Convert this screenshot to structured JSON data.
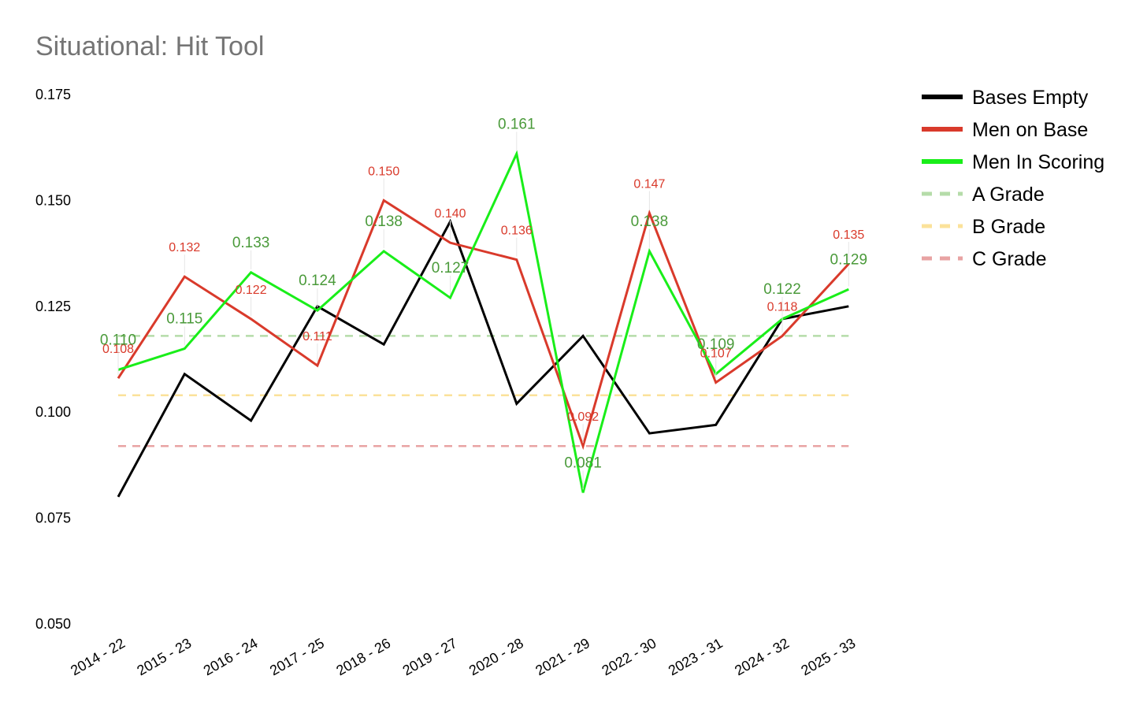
{
  "chart_data": {
    "type": "line",
    "title": "Situational: Hit Tool",
    "xlabel": "",
    "ylabel": "",
    "ylim": [
      0.05,
      0.175
    ],
    "yticks": [
      "0.175",
      "0.150",
      "0.125",
      "0.100",
      "0.075",
      "0.050"
    ],
    "ytick_values": [
      0.175,
      0.15,
      0.125,
      0.1,
      0.075,
      0.05
    ],
    "grid": false,
    "legend_position": "top-right",
    "categories": [
      "2014 - 22",
      "2015 - 23",
      "2016 - 24",
      "2017 - 25",
      "2018 - 26",
      "2019 - 27",
      "2020 - 28",
      "2021 - 29",
      "2022 - 30",
      "2023 - 31",
      "2024 - 32",
      "2025 - 33"
    ],
    "series": [
      {
        "name": "Bases Empty",
        "color": "#000000",
        "labeled": false,
        "values": [
          0.08,
          0.109,
          0.098,
          0.125,
          0.116,
          0.145,
          0.102,
          0.118,
          0.095,
          0.097,
          0.122,
          0.125
        ],
        "labels": []
      },
      {
        "name": "Men on Base",
        "color": "#d93a2b",
        "labeled": true,
        "values": [
          0.108,
          0.132,
          0.122,
          0.111,
          0.15,
          0.14,
          0.136,
          0.092,
          0.147,
          0.107,
          0.118,
          0.135
        ],
        "labels": [
          "0.108",
          "0.132",
          "0.122",
          "0.111",
          "0.150",
          "0.140",
          "0.136",
          "0.092",
          "0.147",
          "0.107",
          "0.118",
          "0.135"
        ]
      },
      {
        "name": "Men In Scoring",
        "color": "#19ee19",
        "label_color": "#4a9a3a",
        "labeled": true,
        "values": [
          0.11,
          0.115,
          0.133,
          0.124,
          0.138,
          0.127,
          0.161,
          0.081,
          0.138,
          0.109,
          0.122,
          0.129
        ],
        "labels": [
          "0.110",
          "0.115",
          "0.133",
          "0.124",
          "0.138",
          "0.127",
          "0.161",
          "0.081",
          "0.138",
          "0.109",
          "0.122",
          "0.129"
        ]
      }
    ],
    "reference_lines": [
      {
        "name": "A Grade",
        "value": 0.118,
        "color": "#b5dca9"
      },
      {
        "name": "B Grade",
        "value": 0.104,
        "color": "#fbe29a"
      },
      {
        "name": "C Grade",
        "value": 0.092,
        "color": "#e8a3a3"
      }
    ]
  }
}
